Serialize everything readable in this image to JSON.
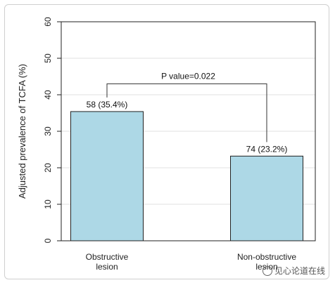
{
  "chart_data": {
    "type": "bar",
    "categories": [
      [
        "Obstructive",
        "lesion"
      ],
      [
        "Non-obstructive",
        "lesion"
      ]
    ],
    "values": [
      35.4,
      23.2
    ],
    "data_labels": [
      "58 (35.4%)",
      "74 (23.2%)"
    ],
    "ylabel": "Adjusted prevalence of TCFA (%)",
    "ylim": [
      0,
      60
    ],
    "yticks": [
      0,
      10,
      20,
      30,
      40,
      50,
      60
    ],
    "grid": true,
    "bar_color": "#add8e6",
    "annotation": "P value=0.022",
    "annotation_y": 43
  },
  "watermark": "见心论道在线"
}
